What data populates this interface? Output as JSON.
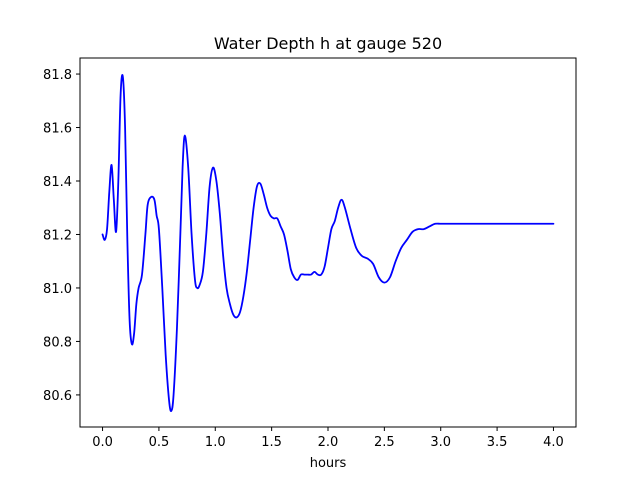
{
  "chart_data": {
    "type": "line",
    "title": "Water Depth h at gauge 520",
    "xlabel": "hours",
    "ylabel": "",
    "xlim": [
      -0.2,
      4.2
    ],
    "ylim": [
      80.48,
      81.86
    ],
    "xticks": [
      0.0,
      0.5,
      1.0,
      1.5,
      2.0,
      2.5,
      3.0,
      3.5,
      4.0
    ],
    "xtick_labels": [
      "0.0",
      "0.5",
      "1.0",
      "1.5",
      "2.0",
      "2.5",
      "3.0",
      "3.5",
      "4.0"
    ],
    "yticks": [
      80.6,
      80.8,
      81.0,
      81.2,
      81.4,
      81.6,
      81.8
    ],
    "ytick_labels": [
      "80.6",
      "80.8",
      "81.0",
      "81.2",
      "81.4",
      "81.6",
      "81.8"
    ],
    "grid": false,
    "line_color": "#0000ff",
    "series": [
      {
        "x": [
          0.0,
          0.02,
          0.04,
          0.06,
          0.08,
          0.1,
          0.12,
          0.14,
          0.16,
          0.18,
          0.2,
          0.22,
          0.24,
          0.26,
          0.28,
          0.3,
          0.32,
          0.35,
          0.38,
          0.4,
          0.43,
          0.46,
          0.48,
          0.5,
          0.53,
          0.56,
          0.59,
          0.61,
          0.63,
          0.66,
          0.69,
          0.71,
          0.73,
          0.76,
          0.79,
          0.82,
          0.84,
          0.86,
          0.89,
          0.92,
          0.95,
          0.98,
          1.01,
          1.04,
          1.07,
          1.1,
          1.13,
          1.16,
          1.19,
          1.22,
          1.25,
          1.28,
          1.31,
          1.34,
          1.37,
          1.4,
          1.43,
          1.46,
          1.49,
          1.52,
          1.55,
          1.58,
          1.61,
          1.64,
          1.67,
          1.7,
          1.73,
          1.76,
          1.79,
          1.82,
          1.85,
          1.88,
          1.91,
          1.94,
          1.97,
          2.0,
          2.03,
          2.06,
          2.09,
          2.12,
          2.15,
          2.2,
          2.25,
          2.3,
          2.35,
          2.4,
          2.45,
          2.5,
          2.55,
          2.6,
          2.65,
          2.7,
          2.75,
          2.8,
          2.85,
          2.9,
          2.95,
          3.0,
          3.05,
          3.1,
          3.15,
          3.2,
          3.25,
          3.3,
          3.35,
          3.4,
          3.45,
          3.5,
          3.55,
          3.6,
          3.65,
          3.7,
          3.75,
          3.8,
          3.85,
          3.9,
          3.95,
          4.0
        ],
        "y": [
          81.2,
          81.18,
          81.22,
          81.36,
          81.46,
          81.33,
          81.21,
          81.4,
          81.72,
          81.79,
          81.6,
          81.18,
          80.88,
          80.79,
          80.83,
          80.94,
          81.0,
          81.05,
          81.2,
          81.31,
          81.34,
          81.33,
          81.27,
          81.22,
          81.0,
          80.75,
          80.58,
          80.54,
          80.6,
          80.85,
          81.2,
          81.45,
          81.57,
          81.45,
          81.2,
          81.03,
          81.0,
          81.01,
          81.06,
          81.2,
          81.38,
          81.45,
          81.4,
          81.28,
          81.12,
          81.0,
          80.94,
          80.9,
          80.89,
          80.91,
          80.97,
          81.06,
          81.18,
          81.3,
          81.38,
          81.39,
          81.35,
          81.3,
          81.27,
          81.26,
          81.26,
          81.23,
          81.2,
          81.14,
          81.07,
          81.04,
          81.03,
          81.05,
          81.05,
          81.05,
          81.05,
          81.06,
          81.05,
          81.05,
          81.08,
          81.15,
          81.22,
          81.25,
          81.3,
          81.33,
          81.3,
          81.22,
          81.15,
          81.12,
          81.11,
          81.09,
          81.04,
          81.02,
          81.04,
          81.1,
          81.15,
          81.18,
          81.21,
          81.22,
          81.22,
          81.23,
          81.24,
          81.24,
          81.24,
          81.24,
          81.24,
          81.24,
          81.24,
          81.24,
          81.24,
          81.24,
          81.24,
          81.24,
          81.24,
          81.24,
          81.24,
          81.24,
          81.24,
          81.24,
          81.24,
          81.24,
          81.24,
          81.24
        ]
      }
    ]
  }
}
